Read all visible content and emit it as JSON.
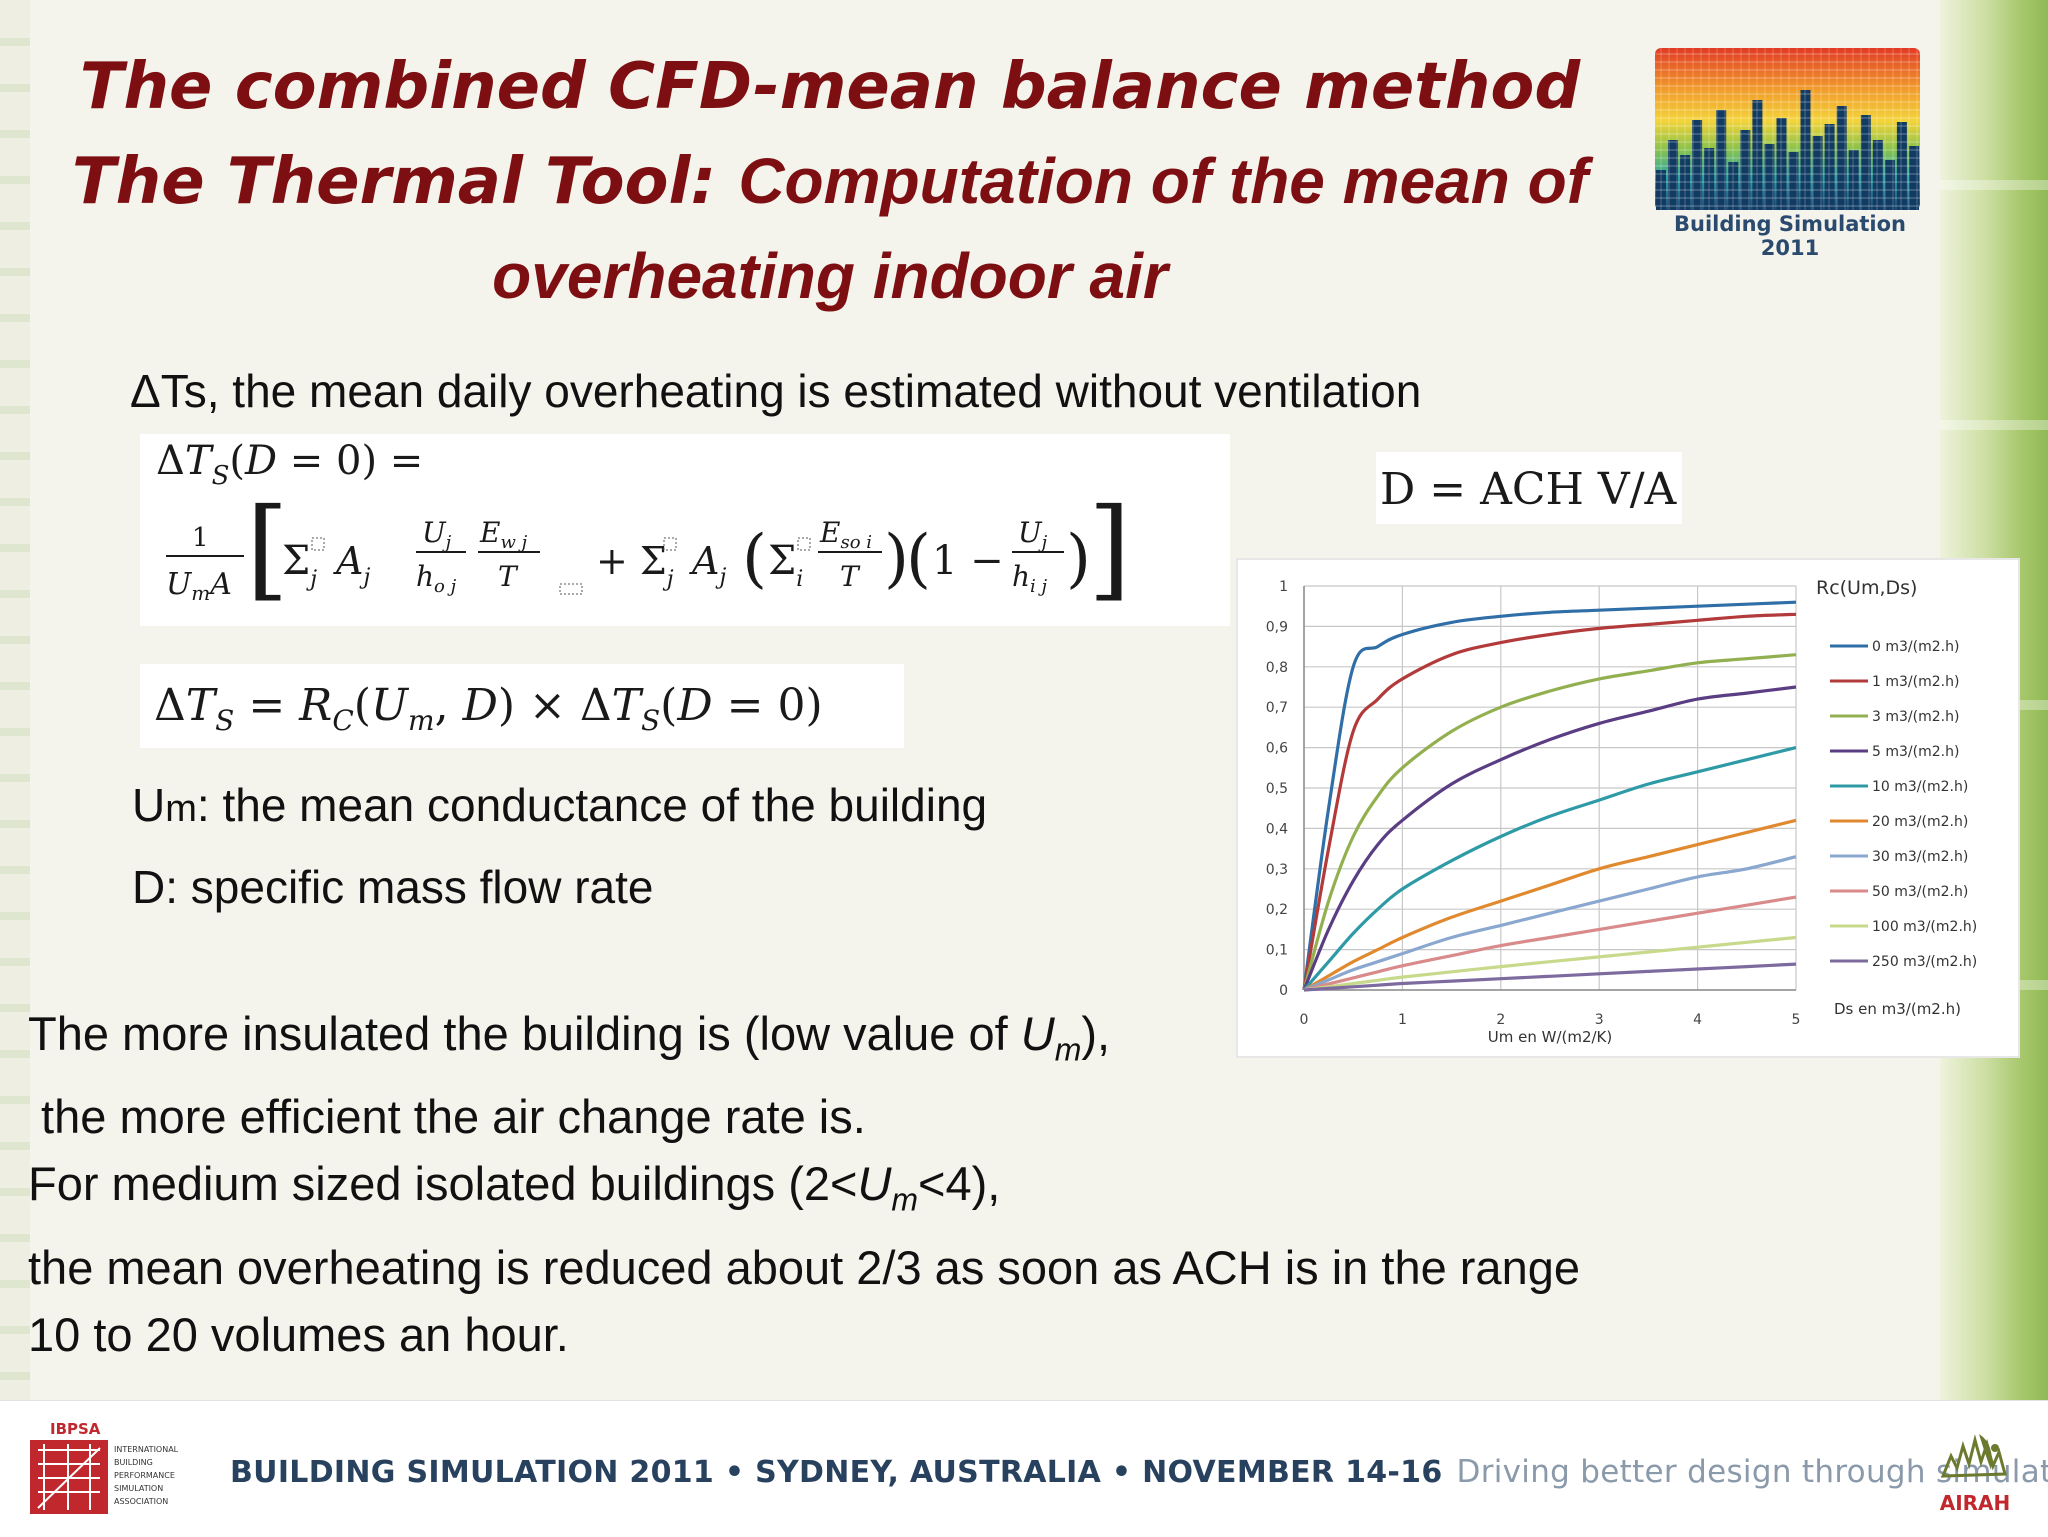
{
  "slide": {
    "title": {
      "line1": "The combined CFD-mean balance method",
      "line2a": "The Thermal Tool: ",
      "line2b": "Computation of the mean of",
      "line3": "overheating indoor air"
    },
    "logo_caption": "Building Simulation 2011",
    "subtitle": "ΔTs, the mean daily overheating is estimated without ventilation",
    "definitions": {
      "um_main": "U",
      "um_sub": "m",
      "um_rest": ": the mean conductance of the building",
      "d": "D: specific mass flow rate"
    },
    "body": {
      "line1_a": "The more insulated the building is (low value of ",
      "line1_b": "U",
      "line1_c": "m",
      "line1_d": "),",
      "line2": " the more efficient the air change rate is.",
      "line3_a": "For medium sized isolated buildings (2<",
      "line3_b": "U",
      "line3_c": "m",
      "line3_d": "<4),",
      "line4": "the mean overheating is reduced about 2/3 as soon as ACH is in the range",
      "line5": "10 to 20 volumes an hour."
    },
    "footer": {
      "ibpsa": "IBPSA",
      "ibpsa_lines": [
        "INTERNATIONAL",
        "BUILDING",
        "PERFORMANCE",
        "SIMULATION",
        "ASSOCIATION"
      ],
      "event": "BUILDING SIMULATION 2011 • SYDNEY, AUSTRALIA • NOVEMBER 14-16",
      "slogan": "Driving better design through simulation",
      "airah": "AIRAH"
    }
  },
  "chart_data": {
    "type": "line",
    "title": "Rc(Um,Ds)",
    "xlabel": "Um en W/(m2/K)",
    "ylabel": "",
    "legend_title": "Ds en m3/(m2.h)",
    "xlim": [
      0,
      5
    ],
    "ylim": [
      0,
      1
    ],
    "x_ticks": [
      "0",
      "1",
      "2",
      "3",
      "4",
      "5"
    ],
    "y_ticks": [
      "0",
      "0,1",
      "0,2",
      "0,3",
      "0,4",
      "0,5",
      "0,6",
      "0,7",
      "0,8",
      "0,9",
      "1"
    ],
    "grid": true,
    "legend_position": "right",
    "x": [
      0,
      0.25,
      0.5,
      0.75,
      1,
      1.5,
      2,
      2.5,
      3,
      3.5,
      4,
      4.5,
      5
    ],
    "series": [
      {
        "name": "0 m3/(m2.h)",
        "color": "#2f6ea6",
        "values": [
          0,
          0.45,
          0.8,
          0.85,
          0.88,
          0.91,
          0.925,
          0.935,
          0.94,
          0.945,
          0.95,
          0.955,
          0.96
        ]
      },
      {
        "name": "1 m3/(m2.h)",
        "color": "#b23a3a",
        "values": [
          0,
          0.35,
          0.64,
          0.72,
          0.77,
          0.83,
          0.86,
          0.88,
          0.895,
          0.905,
          0.915,
          0.925,
          0.93
        ]
      },
      {
        "name": "3 m3/(m2.h)",
        "color": "#93b050",
        "values": [
          0,
          0.22,
          0.38,
          0.48,
          0.55,
          0.64,
          0.7,
          0.74,
          0.77,
          0.79,
          0.81,
          0.82,
          0.83
        ]
      },
      {
        "name": "5 m3/(m2.h)",
        "color": "#5a3d82",
        "values": [
          0,
          0.15,
          0.27,
          0.36,
          0.42,
          0.51,
          0.57,
          0.62,
          0.66,
          0.69,
          0.72,
          0.735,
          0.75
        ]
      },
      {
        "name": "10 m3/(m2.h)",
        "color": "#2e9aa6",
        "values": [
          0,
          0.07,
          0.14,
          0.2,
          0.25,
          0.32,
          0.38,
          0.43,
          0.47,
          0.51,
          0.54,
          0.57,
          0.6
        ]
      },
      {
        "name": "20 m3/(m2.h)",
        "color": "#e0892e",
        "values": [
          0,
          0.035,
          0.07,
          0.1,
          0.13,
          0.18,
          0.22,
          0.26,
          0.3,
          0.33,
          0.36,
          0.39,
          0.42
        ]
      },
      {
        "name": "30 m3/(m2.h)",
        "color": "#8aa7cf",
        "values": [
          0,
          0.025,
          0.05,
          0.07,
          0.09,
          0.13,
          0.16,
          0.19,
          0.22,
          0.25,
          0.28,
          0.3,
          0.33
        ]
      },
      {
        "name": "50 m3/(m2.h)",
        "color": "#d98a8a",
        "values": [
          0,
          0.015,
          0.03,
          0.045,
          0.06,
          0.085,
          0.11,
          0.13,
          0.15,
          0.17,
          0.19,
          0.21,
          0.23
        ]
      },
      {
        "name": "100 m3/(m2.h)",
        "color": "#c7d98a",
        "values": [
          0,
          0.008,
          0.016,
          0.024,
          0.032,
          0.045,
          0.058,
          0.07,
          0.082,
          0.094,
          0.106,
          0.118,
          0.13
        ]
      },
      {
        "name": "250 m3/(m2.h)",
        "color": "#7d6a9e",
        "values": [
          0,
          0.004,
          0.008,
          0.012,
          0.016,
          0.022,
          0.028,
          0.034,
          0.04,
          0.046,
          0.052,
          0.058,
          0.064
        ]
      }
    ]
  }
}
